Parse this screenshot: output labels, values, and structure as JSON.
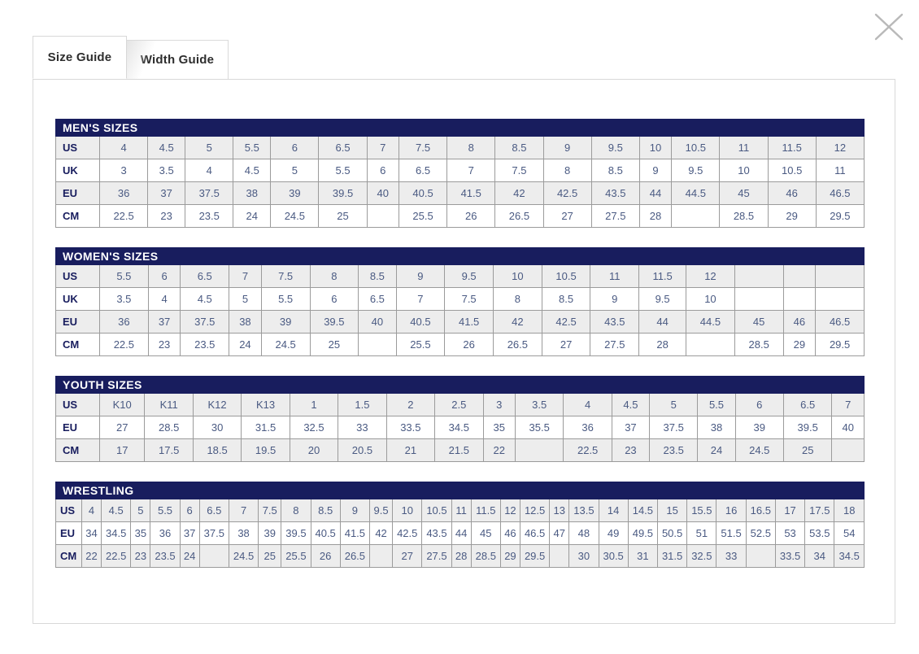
{
  "window": {
    "close_label": "Close"
  },
  "tabs": [
    {
      "label": "Size Guide",
      "active": true
    },
    {
      "label": "Width Guide",
      "active": false
    }
  ],
  "colors": {
    "header_navy": "#181d5e",
    "cell_text": "#4a5a82",
    "stripe_gray": "#ededed",
    "cell_border": "#9b9b9b",
    "panel_border": "#d8d8d8",
    "close_icon_gray": "#b9b9b9"
  },
  "tables": [
    {
      "id": "mens",
      "title": "MEN'S SIZES",
      "title_colspan": 4,
      "rows": [
        {
          "label": "US",
          "values": [
            "4",
            "4.5",
            "5",
            "5.5",
            "6",
            "6.5",
            "7",
            "7.5",
            "8",
            "8.5",
            "9",
            "9.5",
            "10",
            "10.5",
            "11",
            "11.5",
            "12"
          ]
        },
        {
          "label": "UK",
          "values": [
            "3",
            "3.5",
            "4",
            "4.5",
            "5",
            "5.5",
            "6",
            "6.5",
            "7",
            "7.5",
            "8",
            "8.5",
            "9",
            "9.5",
            "10",
            "10.5",
            "11"
          ]
        },
        {
          "label": "EU",
          "values": [
            "36",
            "37",
            "37.5",
            "38",
            "39",
            "39.5",
            "40",
            "40.5",
            "41.5",
            "42",
            "42.5",
            "43.5",
            "44",
            "44.5",
            "45",
            "46",
            "46.5"
          ]
        },
        {
          "label": "CM",
          "values": [
            "22.5",
            "23",
            "23.5",
            "24",
            "24.5",
            "25",
            "",
            "25.5",
            "26",
            "26.5",
            "27",
            "27.5",
            "28",
            "",
            "28.5",
            "29",
            "29.5"
          ]
        }
      ]
    },
    {
      "id": "womens",
      "title": "WOMEN'S SIZES",
      "title_colspan": 4,
      "rows": [
        {
          "label": "US",
          "values": [
            "5.5",
            "6",
            "6.5",
            "7",
            "7.5",
            "8",
            "8.5",
            "9",
            "9.5",
            "10",
            "10.5",
            "11",
            "11.5",
            "12",
            "",
            "",
            ""
          ]
        },
        {
          "label": "UK",
          "values": [
            "3.5",
            "4",
            "4.5",
            "5",
            "5.5",
            "6",
            "6.5",
            "7",
            "7.5",
            "8",
            "8.5",
            "9",
            "9.5",
            "10",
            "",
            "",
            ""
          ]
        },
        {
          "label": "EU",
          "values": [
            "36",
            "37",
            "37.5",
            "38",
            "39",
            "39.5",
            "40",
            "40.5",
            "41.5",
            "42",
            "42.5",
            "43.5",
            "44",
            "44.5",
            "45",
            "46",
            "46.5"
          ]
        },
        {
          "label": "CM",
          "values": [
            "22.5",
            "23",
            "23.5",
            "24",
            "24.5",
            "25",
            "",
            "25.5",
            "26",
            "26.5",
            "27",
            "27.5",
            "28",
            "",
            "28.5",
            "29",
            "29.5"
          ]
        }
      ]
    },
    {
      "id": "youth",
      "title": "YOUTH SIZES",
      "title_colspan": 4,
      "rows": [
        {
          "label": "US",
          "values": [
            "K10",
            "K11",
            "K12",
            "K13",
            "1",
            "1.5",
            "2",
            "2.5",
            "3",
            "3.5",
            "4",
            "4.5",
            "5",
            "5.5",
            "6",
            "6.5",
            "7"
          ]
        },
        {
          "label": "EU",
          "values": [
            "27",
            "28.5",
            "30",
            "31.5",
            "32.5",
            "33",
            "33.5",
            "34.5",
            "35",
            "35.5",
            "36",
            "37",
            "37.5",
            "38",
            "39",
            "39.5",
            "40"
          ]
        },
        {
          "label": "CM",
          "values": [
            "17",
            "17.5",
            "18.5",
            "19.5",
            "20",
            "20.5",
            "21",
            "21.5",
            "22",
            "",
            "22.5",
            "23",
            "23.5",
            "24",
            "24.5",
            "25",
            ""
          ]
        }
      ]
    },
    {
      "id": "wrestling",
      "title": "WRESTLING",
      "title_colspan": 4,
      "rows": [
        {
          "label": "US",
          "values": [
            "4",
            "4.5",
            "5",
            "5.5",
            "6",
            "6.5",
            "7",
            "7.5",
            "8",
            "8.5",
            "9",
            "9.5",
            "10",
            "10.5",
            "11",
            "11.5",
            "12",
            "12.5",
            "13",
            "13.5",
            "14",
            "14.5",
            "15",
            "15.5",
            "16",
            "16.5",
            "17",
            "17.5",
            "18"
          ]
        },
        {
          "label": "EU",
          "values": [
            "34",
            "34.5",
            "35",
            "36",
            "37",
            "37.5",
            "38",
            "39",
            "39.5",
            "40.5",
            "41.5",
            "42",
            "42.5",
            "43.5",
            "44",
            "45",
            "46",
            "46.5",
            "47",
            "48",
            "49",
            "49.5",
            "50.5",
            "51",
            "51.5",
            "52.5",
            "53",
            "53.5",
            "54"
          ]
        },
        {
          "label": "CM",
          "values": [
            "22",
            "22.5",
            "23",
            "23.5",
            "24",
            "",
            "24.5",
            "25",
            "25.5",
            "26",
            "26.5",
            "",
            "27",
            "27.5",
            "28",
            "28.5",
            "29",
            "29.5",
            "",
            "30",
            "30.5",
            "31",
            "31.5",
            "32.5",
            "33",
            "",
            "33.5",
            "34",
            "34.5"
          ]
        }
      ]
    }
  ]
}
